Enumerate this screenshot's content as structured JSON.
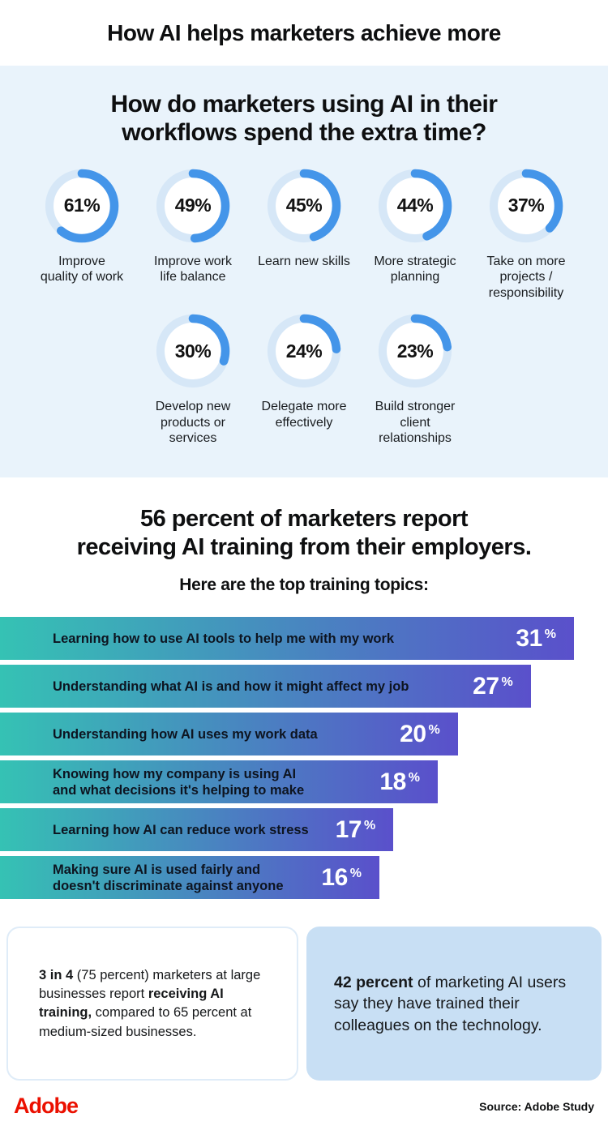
{
  "header": {
    "title": "How AI helps marketers achieve more"
  },
  "hero": {
    "heading": "How do marketers using AI in their\nworkflows spend the extra time?",
    "donuts": [
      {
        "value": 61,
        "value_label": "61%",
        "label": "Improve\nquality of work"
      },
      {
        "value": 49,
        "value_label": "49%",
        "label": "Improve work\nlife balance"
      },
      {
        "value": 45,
        "value_label": "45%",
        "label": "Learn new skills"
      },
      {
        "value": 44,
        "value_label": "44%",
        "label": "More strategic\nplanning"
      },
      {
        "value": 37,
        "value_label": "37%",
        "label": "Take on more\nprojects /\nresponsibility"
      },
      {
        "value": 30,
        "value_label": "30%",
        "label": "Develop new\nproducts or services"
      },
      {
        "value": 24,
        "value_label": "24%",
        "label": "Delegate more\neffectively"
      },
      {
        "value": 23,
        "value_label": "23%",
        "label": "Build stronger\nclient relationships"
      }
    ]
  },
  "training": {
    "heading": "56 percent of marketers report\nreceiving AI training from their employers.",
    "subheading": "Here are the top training topics:",
    "percent_sign": "%",
    "bars": [
      {
        "label": "Learning how to use AI tools to help me with my work",
        "value": 31,
        "width_pct": 94.4
      },
      {
        "label": "Understanding what AI is and how it might affect my job",
        "value": 27,
        "width_pct": 87.3
      },
      {
        "label": "Understanding how AI uses my work data",
        "value": 20,
        "width_pct": 75.3
      },
      {
        "label": "Knowing how my company is using AI\nand what decisions it's helping to make",
        "value": 18,
        "width_pct": 72.0
      },
      {
        "label": "Learning how AI can reduce work stress",
        "value": 17,
        "width_pct": 64.7
      },
      {
        "label": "Making sure AI is used fairly and\ndoesn't discriminate against anyone",
        "value": 16,
        "width_pct": 62.4
      }
    ]
  },
  "callouts": {
    "left": [
      {
        "text": "3 in 4",
        "bold": true
      },
      {
        "text": " (75 percent) marketers at large businesses report ",
        "bold": false
      },
      {
        "text": "receiving AI training,",
        "bold": true
      },
      {
        "text": " compared to 65 percent at medium-sized businesses.",
        "bold": false
      }
    ],
    "right": [
      {
        "text": "42 percent",
        "bold": true
      },
      {
        "text": " of marketing AI users say they have trained their colleagues on the technology.",
        "bold": false
      }
    ]
  },
  "footer": {
    "brand": "Adobe",
    "source": "Source: Adobe Study"
  },
  "colors": {
    "hero_background": "#e9f3fb",
    "donut_arc": "#4495e9",
    "donut_track": "#d6e7f7",
    "bar_gradient_start": "#35c2b4",
    "bar_gradient_end": "#5a50cb",
    "callout_right_background": "#c8dff4",
    "adobe_red": "#eb1000"
  },
  "chart_data": [
    {
      "type": "pie",
      "variant": "donut-grid",
      "title": "How do marketers using AI in their workflows spend the extra time?",
      "categories": [
        "Improve quality of work",
        "Improve work life balance",
        "Learn new skills",
        "More strategic planning",
        "Take on more projects / responsibility",
        "Develop new products or services",
        "Delegate more effectively",
        "Build stronger client relationships"
      ],
      "values": [
        61,
        49,
        45,
        44,
        37,
        30,
        24,
        23
      ],
      "unit": "%",
      "layout": "two rows of donut gauges (5 + 3), arc starts at 12 o'clock clockwise"
    },
    {
      "type": "bar",
      "orientation": "horizontal",
      "title": "Here are the top training topics:",
      "categories": [
        "Learning how to use AI tools to help me with my work",
        "Understanding what AI is and how it might affect my job",
        "Understanding how AI uses my work data",
        "Knowing how my company is using AI and what decisions it's helping to make",
        "Learning how AI can reduce work stress",
        "Making sure AI is used fairly and doesn't discriminate against anyone"
      ],
      "values": [
        31,
        27,
        20,
        18,
        17,
        16
      ],
      "unit": "%",
      "xlim": [
        0,
        33
      ],
      "grid": false,
      "legend": "none",
      "value_labels": "inside bar, right end, white"
    }
  ]
}
